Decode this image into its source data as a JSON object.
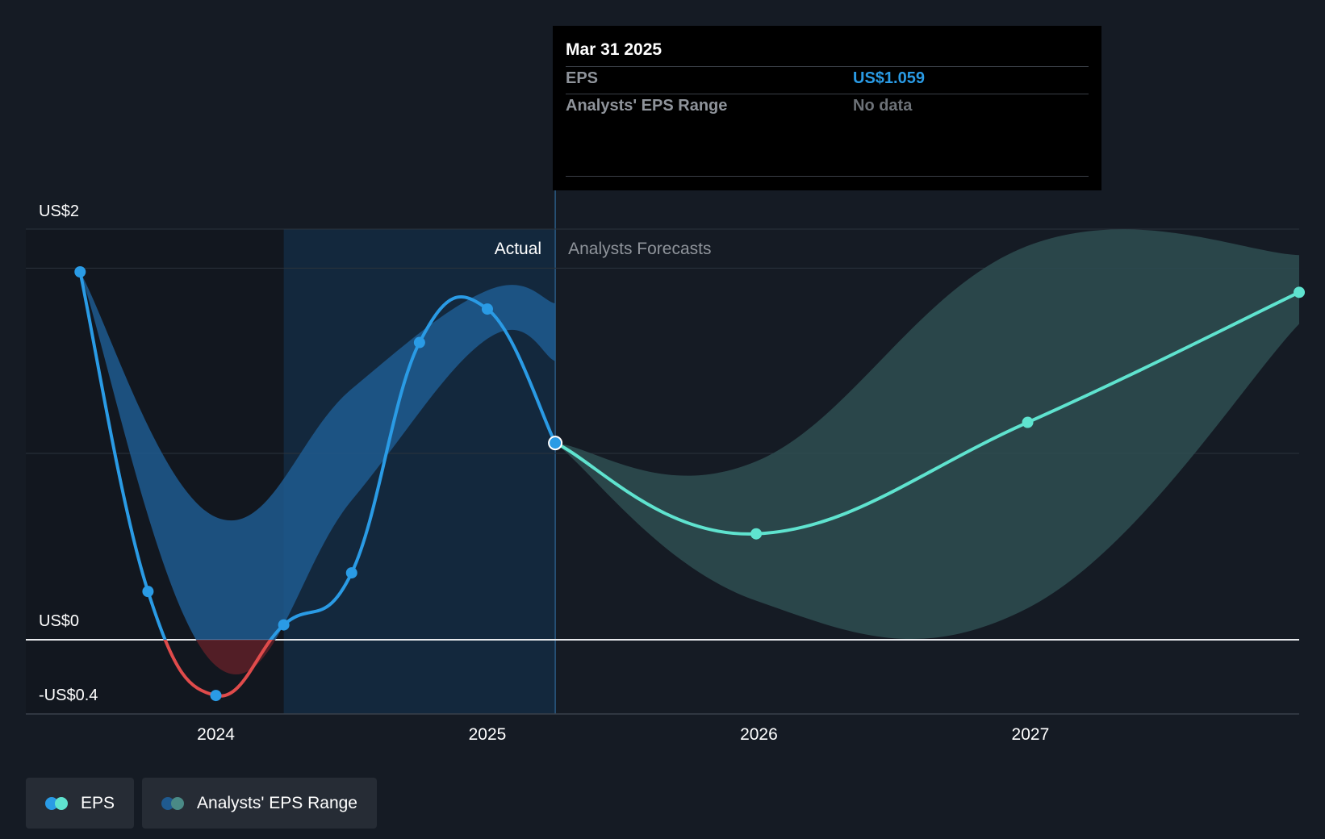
{
  "tooltip": {
    "date": "Mar 31 2025",
    "eps_label": "EPS",
    "eps_value": "US$1.059",
    "range_label": "Analysts' EPS Range",
    "range_value": "No data"
  },
  "legend": {
    "eps_label": "EPS",
    "range_label": "Analysts' EPS Range"
  },
  "colors": {
    "background": "#151b24",
    "eps_actual": "#2a9be5",
    "eps_negative": "#e04b4b",
    "eps_forecast": "#5fe3cf",
    "range_actual": "#1f5a8f",
    "range_forecast": "#2e4d51",
    "highlight": "#13283d"
  },
  "chart_data": {
    "type": "line",
    "y_tick_labels": [
      "US$2",
      "US$0",
      "-US$0.4"
    ],
    "y_tick_values": [
      2,
      0,
      -0.4
    ],
    "x_tick_labels": [
      "2024",
      "2025",
      "2026",
      "2027"
    ],
    "x_tick_values": [
      2024,
      2025,
      2026,
      2027
    ],
    "xlim": [
      2023.3,
      2027.99
    ],
    "ylim": [
      -0.4,
      2.2
    ],
    "region_labels": {
      "actual": "Actual",
      "forecast": "Analysts Forecasts"
    },
    "divider_x": 2025.25,
    "series": [
      {
        "name": "EPS",
        "segment": "actual",
        "x": [
          2023.5,
          2023.75,
          2024.0,
          2024.25,
          2024.5,
          2024.75,
          2025.0,
          2025.25
        ],
        "values": [
          1.98,
          0.26,
          -0.3,
          0.08,
          0.36,
          1.6,
          1.78,
          1.059
        ]
      },
      {
        "name": "EPS",
        "segment": "forecast",
        "x": [
          2025.25,
          2025.99,
          2026.99,
          2027.99
        ],
        "values": [
          1.059,
          0.57,
          1.17,
          1.87
        ]
      }
    ],
    "range": [
      {
        "name": "Analysts' EPS Range",
        "segment": "actual",
        "x": [
          2023.5,
          2024.0,
          2024.5,
          2025.0,
          2025.25
        ],
        "high": [
          1.98,
          0.66,
          1.35,
          1.88,
          1.81
        ],
        "low": [
          1.98,
          -0.14,
          0.75,
          1.62,
          1.5
        ]
      },
      {
        "name": "Analysts' EPS Range",
        "segment": "forecast",
        "x": [
          2025.25,
          2025.99,
          2026.99,
          2027.99
        ],
        "high": [
          1.059,
          0.96,
          2.12,
          2.07
        ],
        "low": [
          1.059,
          0.21,
          0.17,
          1.7
        ]
      }
    ]
  }
}
